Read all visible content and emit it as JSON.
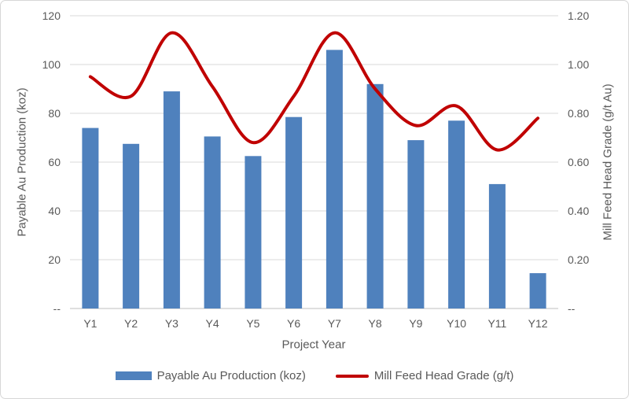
{
  "chart_data": {
    "type": "bar",
    "subtype": "combo-bar-line",
    "categories": [
      "Y1",
      "Y2",
      "Y3",
      "Y4",
      "Y5",
      "Y6",
      "Y7",
      "Y8",
      "Y9",
      "Y10",
      "Y11",
      "Y12"
    ],
    "series": [
      {
        "name": "Payable Au Production (koz)",
        "type": "bar",
        "axis": "left",
        "color": "#4f81bd",
        "values": [
          74,
          67.5,
          89,
          70.5,
          62.5,
          78.5,
          106,
          92,
          69,
          77,
          51,
          14.5
        ]
      },
      {
        "name": "Mill Feed Head Grade (g/t)",
        "type": "line",
        "axis": "right",
        "smooth": true,
        "color": "#c00000",
        "values": [
          0.95,
          0.87,
          1.13,
          0.91,
          0.68,
          0.87,
          1.13,
          0.9,
          0.75,
          0.83,
          0.65,
          0.78
        ]
      }
    ],
    "title": "",
    "xlabel": "Project Year",
    "left_axis": {
      "title": "Payable Au Production (koz)",
      "min": 0,
      "max": 120,
      "tick_interval": 20,
      "tick_labels": [
        "--",
        "20",
        "40",
        "60",
        "80",
        "100",
        "120"
      ]
    },
    "right_axis": {
      "title": "Mill Feed Head Grade (g/t Au)",
      "min": 0,
      "max": 1.2,
      "tick_interval": 0.2,
      "tick_labels": [
        "--",
        "0.20",
        "0.40",
        "0.60",
        "0.80",
        "1.00",
        "1.20"
      ]
    },
    "legend": {
      "position": "bottom",
      "entries": [
        "Payable Au Production (koz)",
        "Mill Feed Head Grade (g/t)"
      ]
    },
    "grid": true,
    "colors": {
      "gridline": "#d9d9d9",
      "axis_line": "#bfbfbf",
      "text": "#595959",
      "background": "#ffffff",
      "border": "#d7d7d7"
    }
  }
}
